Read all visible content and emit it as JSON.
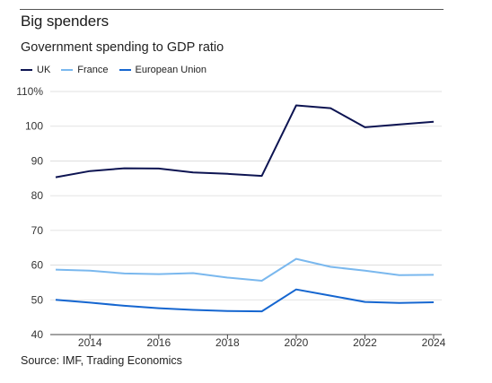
{
  "header": {
    "title": "Big spenders",
    "subtitle": "Government spending to GDP ratio"
  },
  "footer": {
    "source": "Source: IMF, Trading Economics"
  },
  "chart_data": {
    "type": "line",
    "title": "Big spenders",
    "subtitle": "Government spending to GDP ratio",
    "x": [
      2013,
      2014,
      2015,
      2016,
      2017,
      2018,
      2019,
      2020,
      2021,
      2022,
      2023,
      2024
    ],
    "x_ticks": [
      "2014",
      "2016",
      "2018",
      "2020",
      "2022",
      "2024"
    ],
    "y_ticks": [
      "110%",
      "100",
      "90",
      "80",
      "70",
      "60",
      "50",
      "40"
    ],
    "ylim": [
      40,
      110
    ],
    "grid": true,
    "legend": "top-left",
    "series": [
      {
        "name": "UK",
        "color": "#0d1452",
        "values": [
          85.3,
          87.1,
          87.9,
          87.8,
          86.7,
          86.3,
          85.7,
          106.0,
          105.2,
          99.7,
          100.5,
          101.3
        ]
      },
      {
        "name": "France",
        "color": "#7ab8ee",
        "values": [
          58.7,
          58.4,
          57.6,
          57.4,
          57.7,
          56.4,
          55.5,
          61.8,
          59.5,
          58.4,
          57.1,
          57.2
        ]
      },
      {
        "name": "European Union",
        "color": "#1566d0",
        "values": [
          50.0,
          49.2,
          48.3,
          47.6,
          47.1,
          46.8,
          46.7,
          53.0,
          51.2,
          49.4,
          49.1,
          49.3
        ]
      }
    ]
  }
}
